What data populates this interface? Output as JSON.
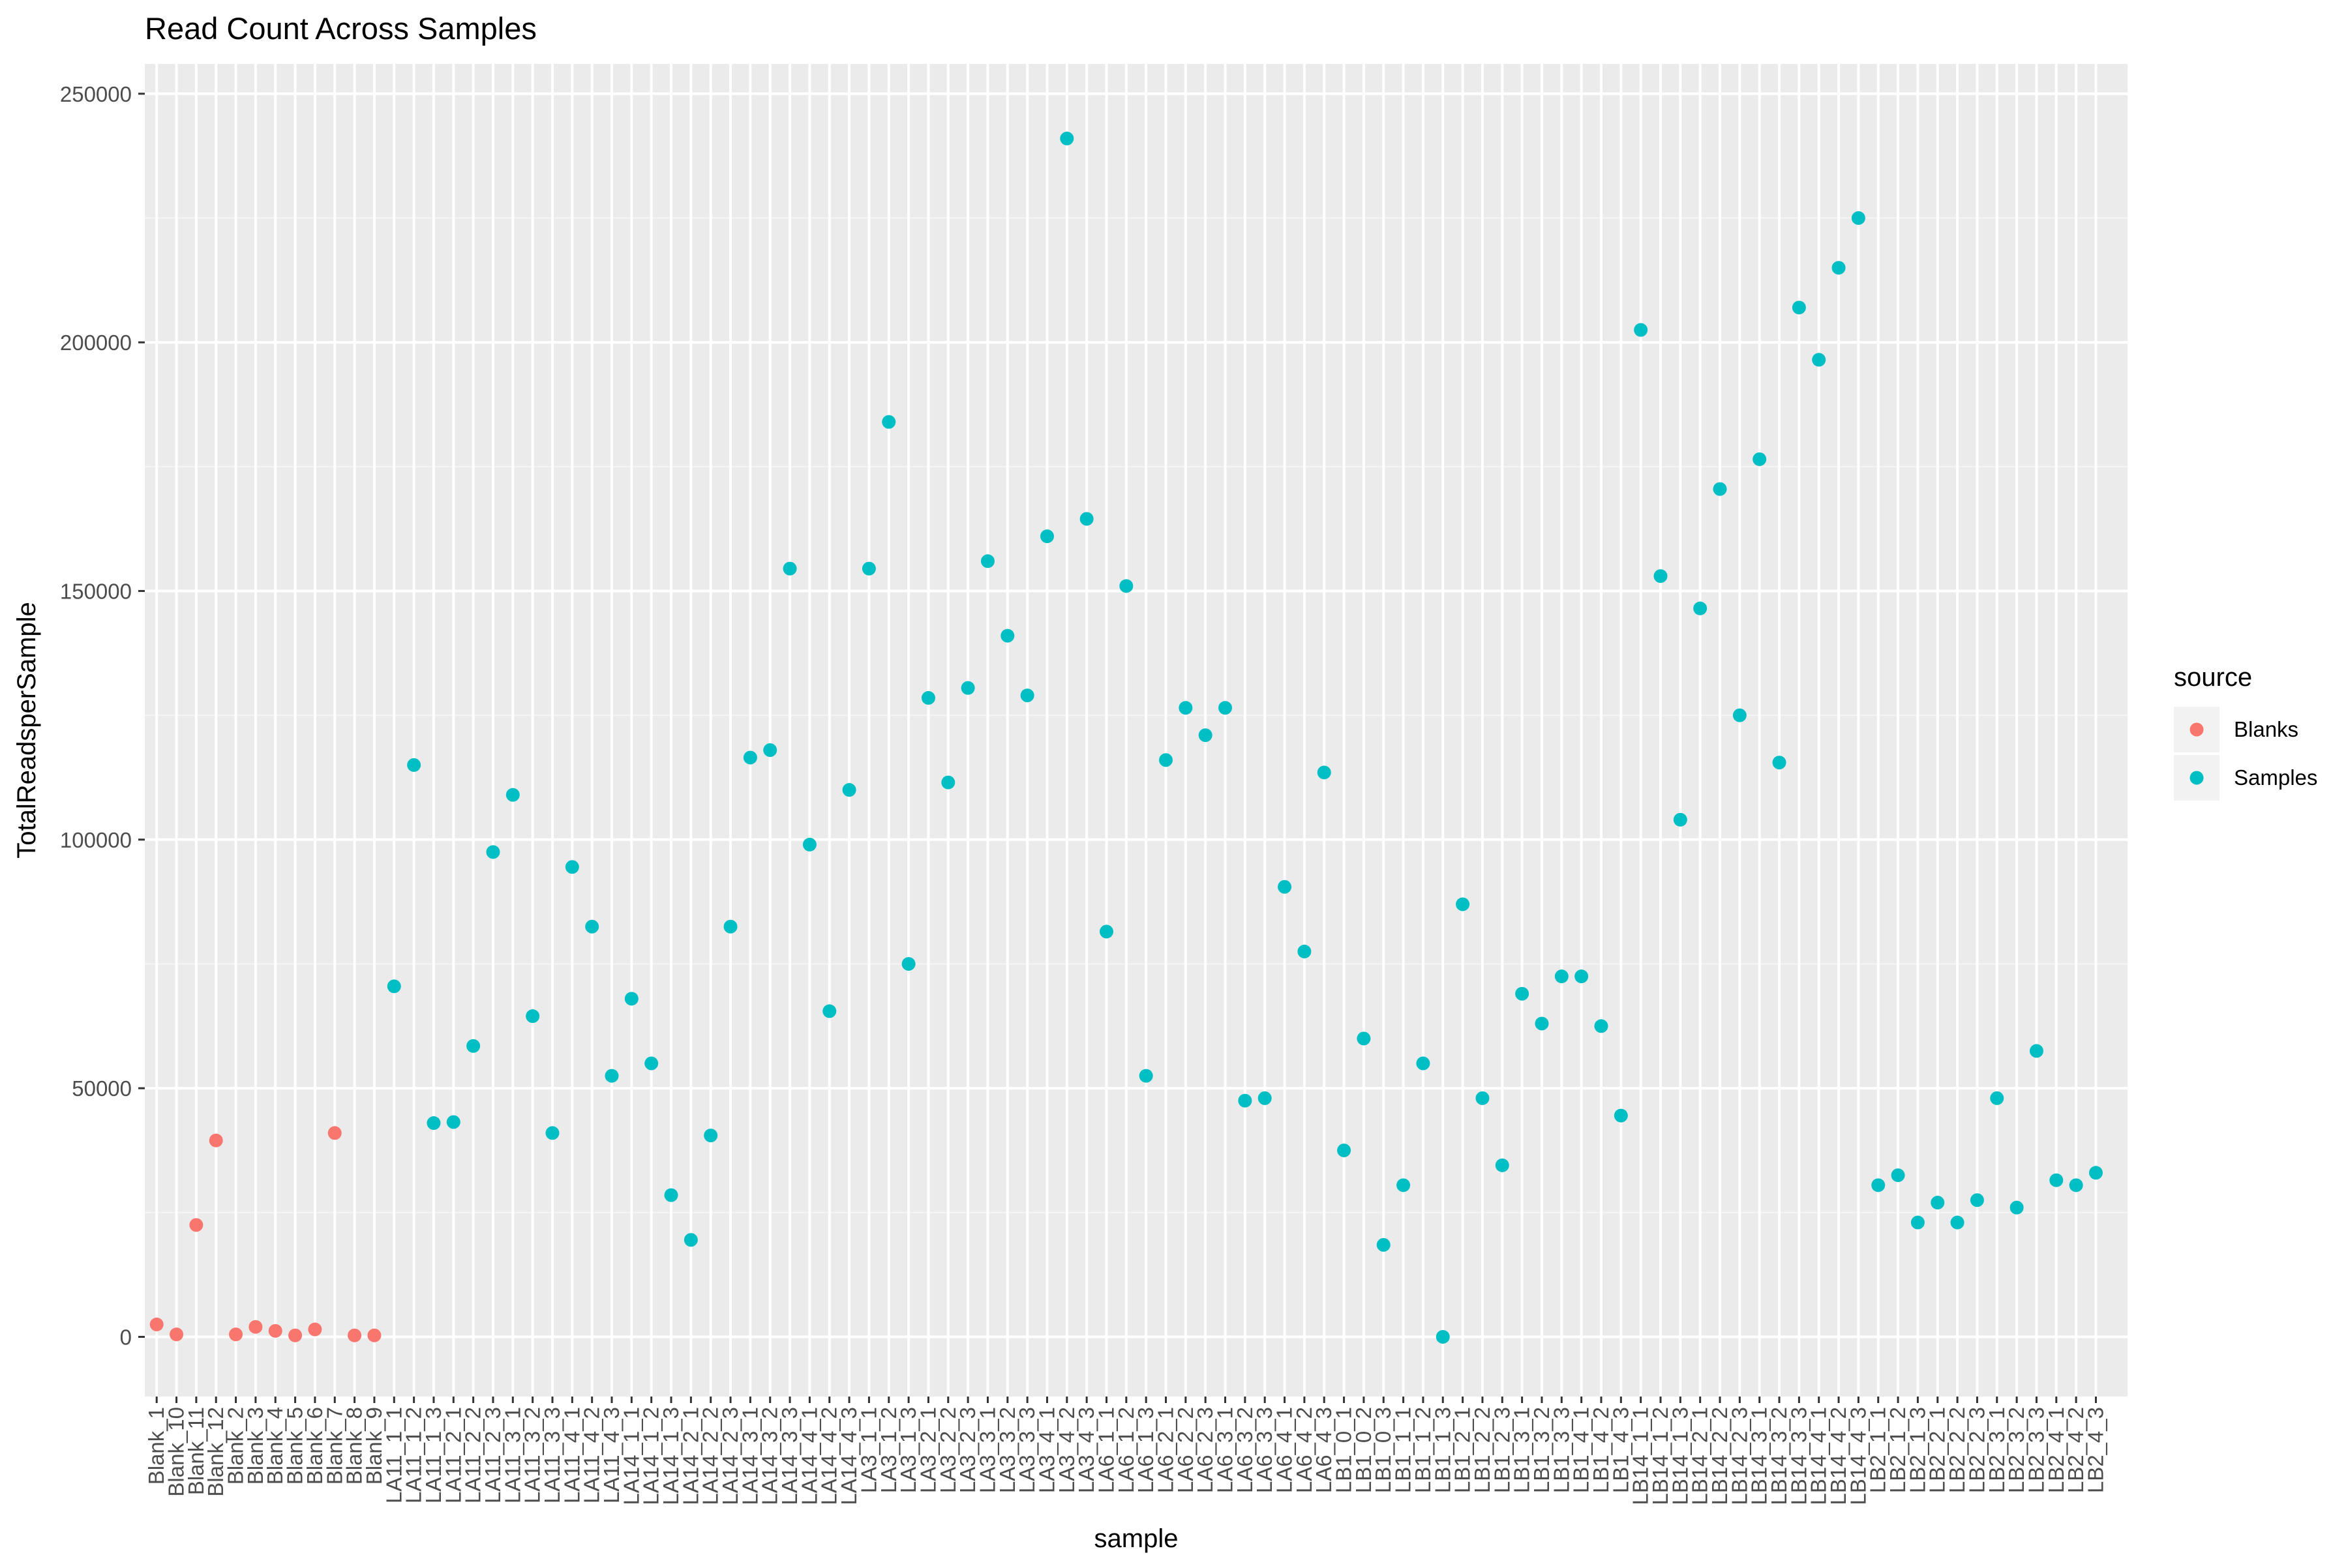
{
  "chart_data": {
    "type": "scatter",
    "title": "Read Count Across Samples",
    "xlabel": "sample",
    "ylabel": "TotalReadsperSample",
    "ylim": [
      -12000,
      256000
    ],
    "yticks": [
      0,
      50000,
      100000,
      150000,
      200000,
      250000
    ],
    "grid": true,
    "legend": {
      "title": "source",
      "position": "right",
      "entries": [
        {
          "name": "Blanks",
          "color": "#F8766D"
        },
        {
          "name": "Samples",
          "color": "#00BFC4"
        }
      ]
    },
    "categories": [
      "Blank_1",
      "Blank_10",
      "Blank_11",
      "Blank_12",
      "Blank_2",
      "Blank_3",
      "Blank_4",
      "Blank_5",
      "Blank_6",
      "Blank_7",
      "Blank_8",
      "Blank_9",
      "LA11_1_1",
      "LA11_1_2",
      "LA11_1_3",
      "LA11_2_1",
      "LA11_2_2",
      "LA11_2_3",
      "LA11_3_1",
      "LA11_3_2",
      "LA11_3_3",
      "LA11_4_1",
      "LA11_4_2",
      "LA11_4_3",
      "LA14_1_1",
      "LA14_1_2",
      "LA14_1_3",
      "LA14_2_1",
      "LA14_2_2",
      "LA14_2_3",
      "LA14_3_1",
      "LA14_3_2",
      "LA14_3_3",
      "LA14_4_1",
      "LA14_4_2",
      "LA14_4_3",
      "LA3_1_1",
      "LA3_1_2",
      "LA3_1_3",
      "LA3_2_1",
      "LA3_2_2",
      "LA3_2_3",
      "LA3_3_1",
      "LA3_3_2",
      "LA3_3_3",
      "LA3_4_1",
      "LA3_4_2",
      "LA3_4_3",
      "LA6_1_1",
      "LA6_1_2",
      "LA6_1_3",
      "LA6_2_1",
      "LA6_2_2",
      "LA6_2_3",
      "LA6_3_1",
      "LA6_3_2",
      "LA6_3_3",
      "LA6_4_1",
      "LA6_4_2",
      "LA6_4_3",
      "LB1_0_1",
      "LB1_0_2",
      "LB1_0_3",
      "LB1_1_1",
      "LB1_1_2",
      "LB1_1_3",
      "LB1_2_1",
      "LB1_2_2",
      "LB1_2_3",
      "LB1_3_1",
      "LB1_3_2",
      "LB1_3_3",
      "LB1_4_1",
      "LB1_4_2",
      "LB1_4_3",
      "LB14_1_1",
      "LB14_1_2",
      "LB14_1_3",
      "LB14_2_1",
      "LB14_2_2",
      "LB14_2_3",
      "LB14_3_1",
      "LB14_3_2",
      "LB14_3_3",
      "LB14_4_1",
      "LB14_4_2",
      "LB14_4_3",
      "LB2_1_1",
      "LB2_1_2",
      "LB2_1_3",
      "LB2_2_1",
      "LB2_2_2",
      "LB2_2_3",
      "LB2_3_1",
      "LB2_3_2",
      "LB2_3_3",
      "LB2_4_1",
      "LB2_4_2",
      "LB2_4_3"
    ],
    "series": [
      {
        "name": "Blanks",
        "color": "#F8766D",
        "x": [
          "Blank_1",
          "Blank_10",
          "Blank_11",
          "Blank_12",
          "Blank_2",
          "Blank_3",
          "Blank_4",
          "Blank_5",
          "Blank_6",
          "Blank_7",
          "Blank_8",
          "Blank_9"
        ],
        "y": [
          2500,
          500,
          22500,
          39500,
          500,
          2000,
          1200,
          300,
          1500,
          41000,
          300,
          300
        ]
      },
      {
        "name": "Samples",
        "color": "#00BFC4",
        "x": [
          "LA11_1_1",
          "LA11_1_2",
          "LA11_1_3",
          "LA11_2_1",
          "LA11_2_2",
          "LA11_2_3",
          "LA11_3_1",
          "LA11_3_2",
          "LA11_3_3",
          "LA11_4_1",
          "LA11_4_2",
          "LA11_4_3",
          "LA14_1_1",
          "LA14_1_2",
          "LA14_1_3",
          "LA14_2_1",
          "LA14_2_2",
          "LA14_2_3",
          "LA14_3_1",
          "LA14_3_2",
          "LA14_3_3",
          "LA14_4_1",
          "LA14_4_2",
          "LA14_4_3",
          "LA3_1_1",
          "LA3_1_2",
          "LA3_1_3",
          "LA3_2_1",
          "LA3_2_2",
          "LA3_2_3",
          "LA3_3_1",
          "LA3_3_2",
          "LA3_3_3",
          "LA3_4_1",
          "LA3_4_2",
          "LA3_4_3",
          "LA6_1_1",
          "LA6_1_2",
          "LA6_1_3",
          "LA6_2_1",
          "LA6_2_2",
          "LA6_2_3",
          "LA6_3_1",
          "LA6_3_2",
          "LA6_3_3",
          "LA6_4_1",
          "LA6_4_2",
          "LA6_4_3",
          "LB1_0_1",
          "LB1_0_2",
          "LB1_0_3",
          "LB1_1_1",
          "LB1_1_2",
          "LB1_1_3",
          "LB1_2_1",
          "LB1_2_2",
          "LB1_2_3",
          "LB1_3_1",
          "LB1_3_2",
          "LB1_3_3",
          "LB1_4_1",
          "LB1_4_2",
          "LB1_4_3",
          "LB14_1_1",
          "LB14_1_2",
          "LB14_1_3",
          "LB14_2_1",
          "LB14_2_2",
          "LB14_2_3",
          "LB14_3_1",
          "LB14_3_2",
          "LB14_3_3",
          "LB14_4_1",
          "LB14_4_2",
          "LB14_4_3",
          "LB2_1_1",
          "LB2_1_2",
          "LB2_1_3",
          "LB2_2_1",
          "LB2_2_2",
          "LB2_2_3",
          "LB2_3_1",
          "LB2_3_2",
          "LB2_3_3",
          "LB2_4_1",
          "LB2_4_2",
          "LB2_4_3"
        ],
        "y": [
          70500,
          115000,
          43000,
          43200,
          58500,
          97500,
          109000,
          64500,
          41000,
          94500,
          82500,
          52500,
          68000,
          55000,
          28500,
          19500,
          40500,
          82500,
          116500,
          118000,
          154500,
          99000,
          65500,
          110000,
          154500,
          184000,
          75000,
          128500,
          111500,
          130500,
          156000,
          141000,
          129000,
          161000,
          241000,
          164500,
          81500,
          151000,
          52500,
          116000,
          126500,
          121000,
          126500,
          47500,
          48000,
          90500,
          77500,
          113500,
          37500,
          60000,
          18500,
          30500,
          55000,
          0,
          87000,
          48000,
          34500,
          69000,
          63000,
          72500,
          72500,
          62500,
          44500,
          202500,
          153000,
          104000,
          146500,
          170500,
          125000,
          176500,
          115500,
          207000,
          196500,
          215000,
          225000,
          30500,
          32500,
          23000,
          27000,
          23000,
          27500,
          48000,
          26000,
          57500,
          31500,
          30500,
          33000
        ]
      }
    ]
  }
}
